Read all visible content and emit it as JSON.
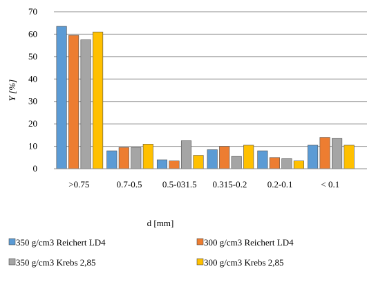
{
  "chart_data": {
    "type": "bar",
    "categories": [
      ">0.75",
      "0.7-0.5",
      "0.5-031.5",
      "0.315-0.2",
      "0.2-0.1",
      "< 0.1"
    ],
    "series": [
      {
        "name": "350 g/cm3 Reichert LD4",
        "color": "#5b9bd5",
        "values": [
          63.5,
          8,
          4,
          8.5,
          8,
          10.5
        ]
      },
      {
        "name": "300 g/cm3 Reichert LD4",
        "color": "#ed7d31",
        "values": [
          59.5,
          9.5,
          3.5,
          10,
          5,
          14
        ]
      },
      {
        "name": "350 g/cm3 Krebs 2,85",
        "color": "#a5a5a5",
        "values": [
          57.5,
          9.5,
          12.5,
          5.5,
          4.5,
          13.5
        ]
      },
      {
        "name": "300 g/cm3 Krebs 2,85",
        "color": "#ffc000",
        "values": [
          61,
          11,
          6,
          10.5,
          3.5,
          10.5
        ]
      }
    ],
    "xlabel": "d [mm]",
    "ylabel": "Y [%]",
    "ylim": [
      0,
      70
    ],
    "yticks": [
      0,
      10,
      20,
      30,
      40,
      50,
      60,
      70
    ],
    "grid": true,
    "legend_position": "bottom"
  }
}
